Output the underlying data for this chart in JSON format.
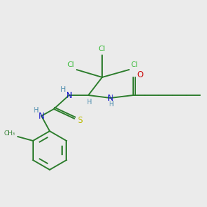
{
  "bg_color": "#ebebeb",
  "bond_color": "#2d7d2d",
  "cl_color": "#3dbb3d",
  "n_color": "#1111cc",
  "o_color": "#cc1111",
  "s_color": "#bbbb00",
  "h_color": "#4488aa",
  "figsize": [
    3.0,
    3.0
  ],
  "dpi": 100,
  "xlim": [
    0,
    300
  ],
  "ylim": [
    0,
    300
  ]
}
